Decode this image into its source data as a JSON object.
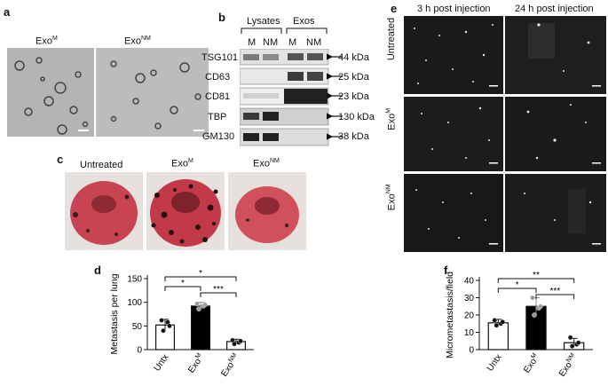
{
  "panels": {
    "a": {
      "label": "a",
      "titles": [
        {
          "base": "Exo",
          "sup": "M"
        },
        {
          "base": "Exo",
          "sup": "NM"
        }
      ]
    },
    "b": {
      "label": "b",
      "groups": [
        "Lysates",
        "Exos"
      ],
      "lanes": [
        "M",
        "NM",
        "M",
        "NM"
      ],
      "rows": [
        {
          "protein": "TSG101",
          "size": "44 kDa"
        },
        {
          "protein": "CD63",
          "size": "25 kDa"
        },
        {
          "protein": "CD81",
          "size": "23 kDa"
        },
        {
          "protein": "TBP",
          "size": "130 kDa"
        },
        {
          "protein": "GM130",
          "size": "38 kDa"
        }
      ]
    },
    "c": {
      "label": "c",
      "titles": [
        {
          "base": "Untreated",
          "sup": ""
        },
        {
          "base": "Exo",
          "sup": "M"
        },
        {
          "base": "Exo",
          "sup": "NM"
        }
      ]
    },
    "e": {
      "label": "e",
      "columns": [
        "3 h post injection",
        "24 h post injection"
      ],
      "rows": [
        {
          "base": "Untreated",
          "sup": ""
        },
        {
          "base": "Exo",
          "sup": "M"
        },
        {
          "base": "Exo",
          "sup": "NM"
        }
      ]
    }
  },
  "chart_data": [
    {
      "panel": "d",
      "type": "bar",
      "ylabel": "Metastasis per lung",
      "ylim": [
        0,
        150
      ],
      "yticks": [
        0,
        50,
        100,
        150
      ],
      "categories": [
        {
          "base": "Untx",
          "sup": ""
        },
        {
          "base": "Exo",
          "sup": "M"
        },
        {
          "base": "Exo",
          "sup": "NM"
        }
      ],
      "values": [
        52,
        92,
        17
      ],
      "errors": [
        12,
        8,
        5
      ],
      "points": [
        [
          62,
          58,
          40,
          50
        ],
        [
          97,
          92,
          86,
          95
        ],
        [
          20,
          15,
          12,
          18
        ]
      ],
      "bar_colors": [
        "#ffffff",
        "#000000",
        "#ffffff"
      ],
      "significance": [
        {
          "from": 0,
          "to": 2,
          "label": "*"
        },
        {
          "from": 0,
          "to": 1,
          "label": "*"
        },
        {
          "from": 1,
          "to": 2,
          "label": "***"
        }
      ]
    },
    {
      "panel": "f",
      "type": "bar",
      "ylabel": "Micrometastasis/field",
      "ylim": [
        0,
        40
      ],
      "yticks": [
        0,
        10,
        20,
        30,
        40
      ],
      "categories": [
        {
          "base": "Untx",
          "sup": ""
        },
        {
          "base": "Exo",
          "sup": "M"
        },
        {
          "base": "Exo",
          "sup": "NM"
        }
      ],
      "values": [
        15.5,
        25,
        4
      ],
      "errors": [
        2,
        5,
        2.5
      ],
      "points": [
        [
          17,
          15,
          14,
          16
        ],
        [
          30,
          24,
          20,
          25
        ],
        [
          7,
          3,
          2,
          4
        ]
      ],
      "bar_colors": [
        "#ffffff",
        "#000000",
        "#ffffff"
      ],
      "significance": [
        {
          "from": 0,
          "to": 2,
          "label": "**"
        },
        {
          "from": 0,
          "to": 1,
          "label": "*"
        },
        {
          "from": 1,
          "to": 2,
          "label": "***"
        }
      ]
    }
  ]
}
